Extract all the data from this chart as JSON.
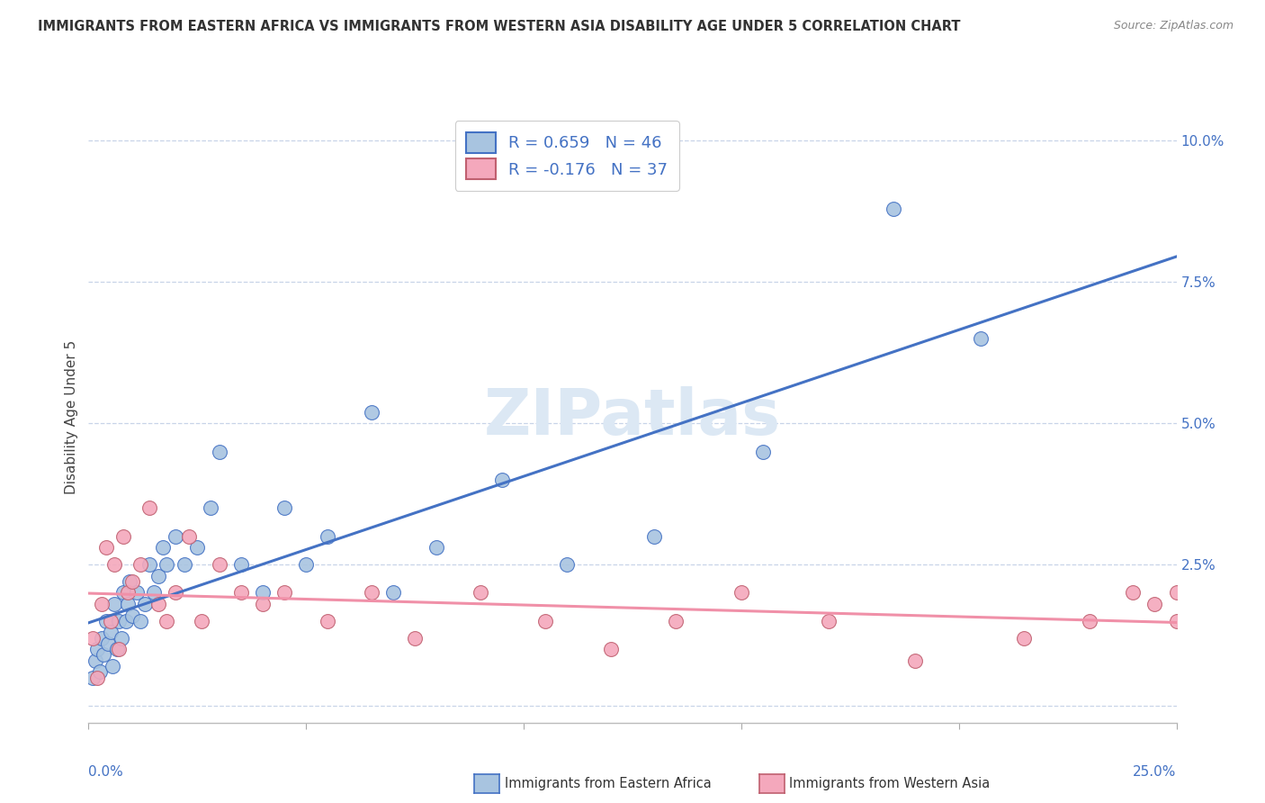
{
  "title": "IMMIGRANTS FROM EASTERN AFRICA VS IMMIGRANTS FROM WESTERN ASIA DISABILITY AGE UNDER 5 CORRELATION CHART",
  "source": "Source: ZipAtlas.com",
  "ylabel": "Disability Age Under 5",
  "xlim": [
    0.0,
    25.0
  ],
  "ylim": [
    -0.3,
    10.5
  ],
  "yticks": [
    0.0,
    2.5,
    5.0,
    7.5,
    10.0
  ],
  "xticks": [
    0,
    5,
    10,
    15,
    20,
    25
  ],
  "r_blue": 0.659,
  "n_blue": 46,
  "r_pink": -0.176,
  "n_pink": 37,
  "blue_face": "#a8c4e0",
  "blue_edge": "#4472c4",
  "pink_face": "#f4a8bc",
  "pink_edge": "#c06070",
  "blue_line": "#4472c4",
  "pink_line": "#f090a8",
  "watermark_color": "#dce8f4",
  "grid_color": "#c8d4e8",
  "title_color": "#333333",
  "axis_color": "#4472c4",
  "blue_x": [
    0.1,
    0.15,
    0.2,
    0.25,
    0.3,
    0.35,
    0.4,
    0.45,
    0.5,
    0.55,
    0.6,
    0.65,
    0.7,
    0.75,
    0.8,
    0.85,
    0.9,
    0.95,
    1.0,
    1.1,
    1.2,
    1.3,
    1.4,
    1.5,
    1.6,
    1.7,
    1.8,
    2.0,
    2.2,
    2.5,
    2.8,
    3.0,
    3.5,
    4.0,
    4.5,
    5.0,
    5.5,
    6.5,
    7.0,
    8.0,
    9.5,
    11.0,
    13.0,
    15.5,
    18.5,
    20.5
  ],
  "blue_y": [
    0.5,
    0.8,
    1.0,
    0.6,
    1.2,
    0.9,
    1.5,
    1.1,
    1.3,
    0.7,
    1.8,
    1.0,
    1.5,
    1.2,
    2.0,
    1.5,
    1.8,
    2.2,
    1.6,
    2.0,
    1.5,
    1.8,
    2.5,
    2.0,
    2.3,
    2.8,
    2.5,
    3.0,
    2.5,
    2.8,
    3.5,
    4.5,
    2.5,
    2.0,
    3.5,
    2.5,
    3.0,
    5.2,
    2.0,
    2.8,
    4.0,
    2.5,
    3.0,
    4.5,
    8.8,
    6.5
  ],
  "pink_x": [
    0.1,
    0.2,
    0.3,
    0.4,
    0.5,
    0.6,
    0.7,
    0.8,
    0.9,
    1.0,
    1.2,
    1.4,
    1.6,
    1.8,
    2.0,
    2.3,
    2.6,
    3.0,
    3.5,
    4.0,
    4.5,
    5.5,
    6.5,
    7.5,
    9.0,
    10.5,
    12.0,
    13.5,
    15.0,
    17.0,
    19.0,
    21.5,
    23.0,
    24.0,
    24.5,
    25.0,
    25.0
  ],
  "pink_y": [
    1.2,
    0.5,
    1.8,
    2.8,
    1.5,
    2.5,
    1.0,
    3.0,
    2.0,
    2.2,
    2.5,
    3.5,
    1.8,
    1.5,
    2.0,
    3.0,
    1.5,
    2.5,
    2.0,
    1.8,
    2.0,
    1.5,
    2.0,
    1.2,
    2.0,
    1.5,
    1.0,
    1.5,
    2.0,
    1.5,
    0.8,
    1.2,
    1.5,
    2.0,
    1.8,
    1.5,
    2.0
  ]
}
